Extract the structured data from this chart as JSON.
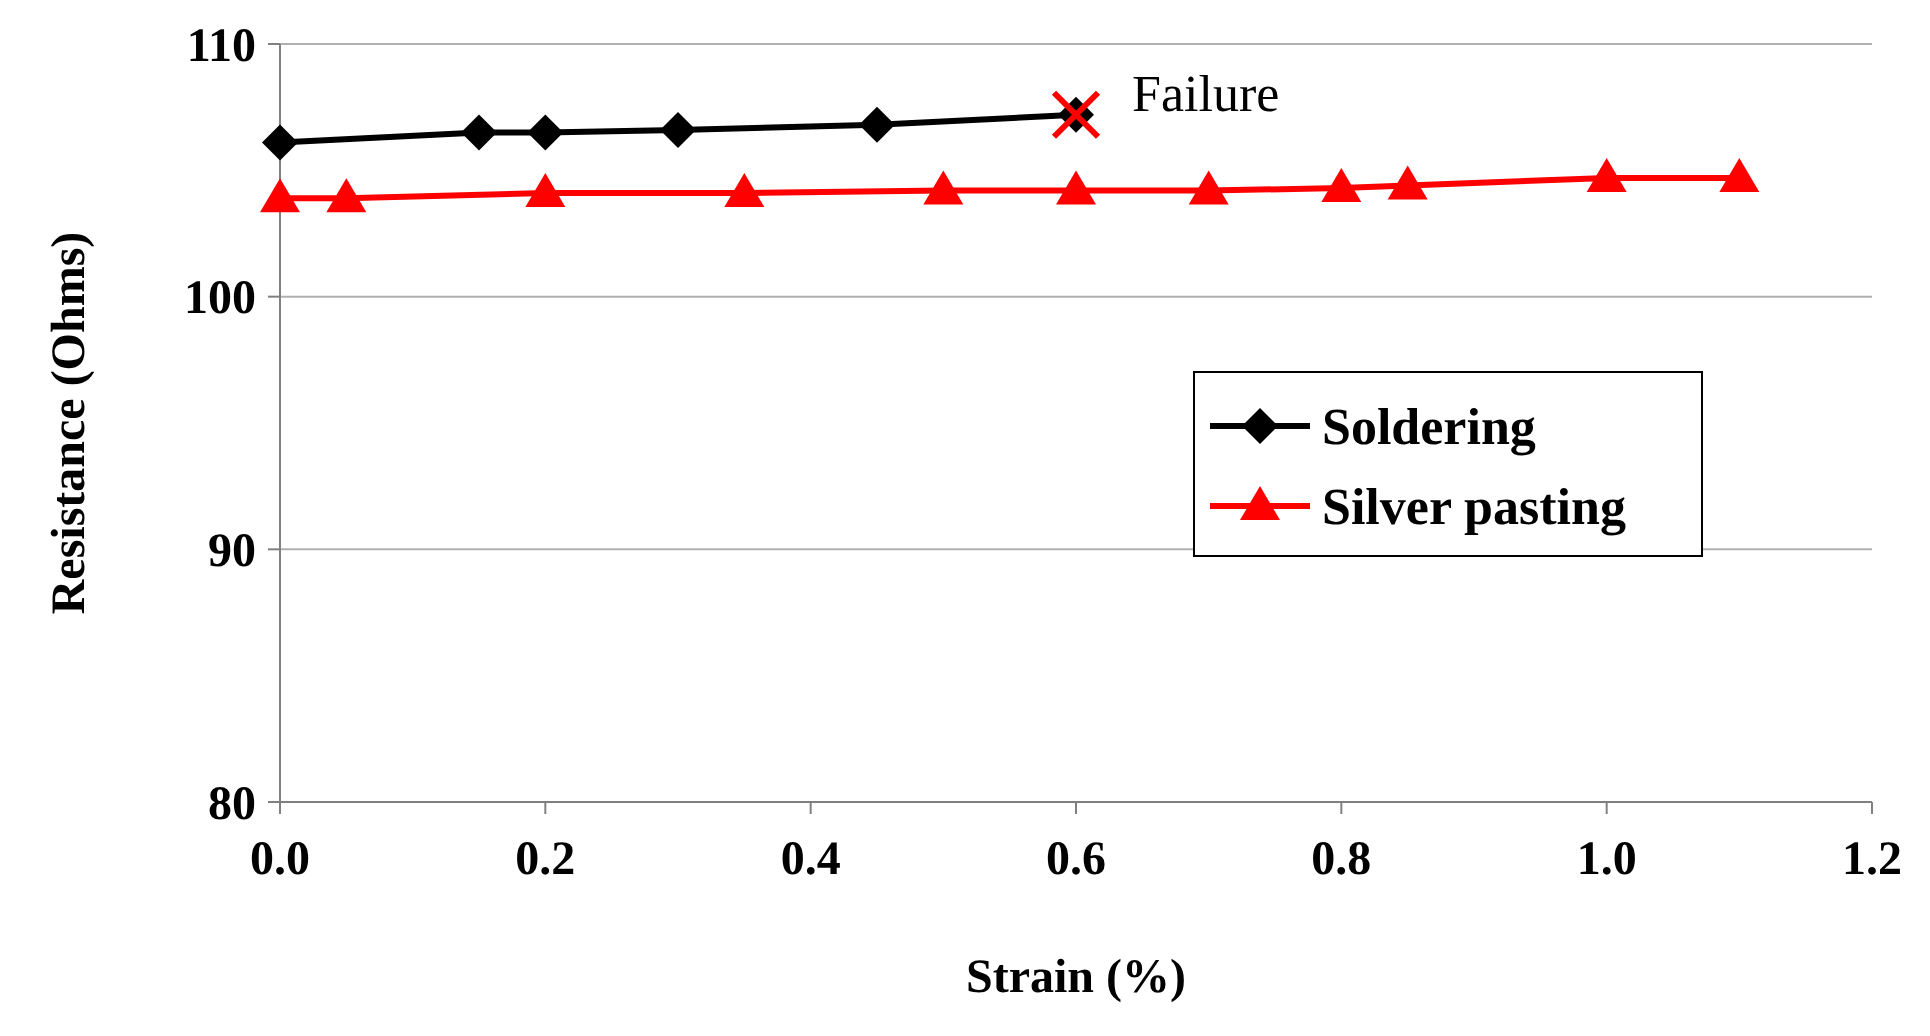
{
  "chart_data": {
    "type": "line",
    "xlabel": "Strain (%)",
    "ylabel": "Resistance (Ohms)",
    "xlim": [
      0,
      1.2
    ],
    "xticks": [
      {
        "value": 0,
        "label": "0.0"
      },
      {
        "value": 0.2,
        "label": "0.2"
      },
      {
        "value": 0.4,
        "label": "0.4"
      },
      {
        "value": 0.6,
        "label": "0.6"
      },
      {
        "value": 0.8,
        "label": "0.8"
      },
      {
        "value": 1,
        "label": "1.0"
      },
      {
        "value": 1.2,
        "label": "1.2"
      }
    ],
    "ylim": [
      80,
      110
    ],
    "yticks": [
      80,
      90,
      100,
      110
    ],
    "grid": "y",
    "legend": "right",
    "series": [
      {
        "name": "Soldering",
        "color": "#000000",
        "marker": "diamond",
        "x": [
          0,
          0.15,
          0.2,
          0.3,
          0.45,
          0.6
        ],
        "values": [
          106.1,
          106.5,
          106.5,
          106.6,
          106.8,
          107.2
        ]
      },
      {
        "name": "Silver pasting",
        "color": "#ff0000",
        "marker": "triangle",
        "x": [
          0,
          0.05,
          0.2,
          0.35,
          0.5,
          0.6,
          0.7,
          0.8,
          0.85,
          1,
          1.1
        ],
        "values": [
          103.9,
          103.9,
          104.1,
          104.1,
          104.2,
          104.2,
          104.2,
          104.3,
          104.4,
          104.7,
          104.7
        ]
      },
      {
        "type": "scatter",
        "color": "#ff0000",
        "marker": "cross",
        "x": [
          0.6
        ],
        "values": [
          107.2
        ]
      }
    ],
    "annotations": [
      {
        "text": "Failure",
        "x": 0.6,
        "y": 107.2
      }
    ]
  }
}
